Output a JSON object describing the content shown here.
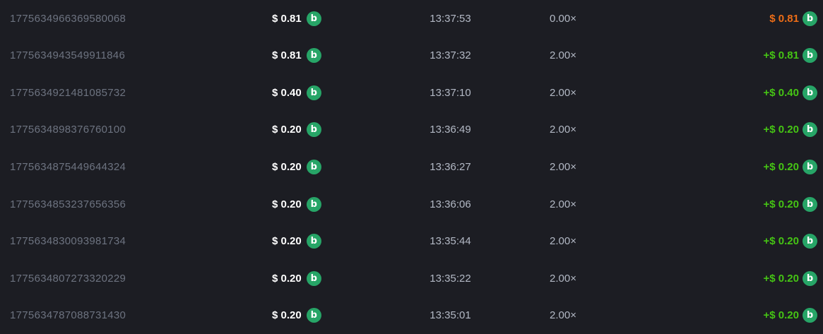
{
  "table": {
    "description": "bet history list",
    "colors": {
      "background": "#1c1d23",
      "id_text": "#6d7380",
      "muted_text": "#b3b9c5",
      "amount_text": "#ffffff",
      "win_text": "#45c414",
      "loss_text": "#ed6d17",
      "coin_green": "#27a567"
    },
    "coin_icon": {
      "name": "coin-icon",
      "glyph": "b"
    },
    "rows": [
      {
        "id": "1775634966369580068",
        "bet": "$ 0.81",
        "time": "13:37:53",
        "multiplier": "0.00×",
        "payout": "$ 0.81",
        "result": "loss"
      },
      {
        "id": "1775634943549911846",
        "bet": "$ 0.81",
        "time": "13:37:32",
        "multiplier": "2.00×",
        "payout": "+$ 0.81",
        "result": "win"
      },
      {
        "id": "1775634921481085732",
        "bet": "$ 0.40",
        "time": "13:37:10",
        "multiplier": "2.00×",
        "payout": "+$ 0.40",
        "result": "win"
      },
      {
        "id": "1775634898376760100",
        "bet": "$ 0.20",
        "time": "13:36:49",
        "multiplier": "2.00×",
        "payout": "+$ 0.20",
        "result": "win"
      },
      {
        "id": "1775634875449644324",
        "bet": "$ 0.20",
        "time": "13:36:27",
        "multiplier": "2.00×",
        "payout": "+$ 0.20",
        "result": "win"
      },
      {
        "id": "1775634853237656356",
        "bet": "$ 0.20",
        "time": "13:36:06",
        "multiplier": "2.00×",
        "payout": "+$ 0.20",
        "result": "win"
      },
      {
        "id": "1775634830093981734",
        "bet": "$ 0.20",
        "time": "13:35:44",
        "multiplier": "2.00×",
        "payout": "+$ 0.20",
        "result": "win"
      },
      {
        "id": "1775634807273320229",
        "bet": "$ 0.20",
        "time": "13:35:22",
        "multiplier": "2.00×",
        "payout": "+$ 0.20",
        "result": "win"
      },
      {
        "id": "1775634787088731430",
        "bet": "$ 0.20",
        "time": "13:35:01",
        "multiplier": "2.00×",
        "payout": "+$ 0.20",
        "result": "win"
      }
    ]
  }
}
